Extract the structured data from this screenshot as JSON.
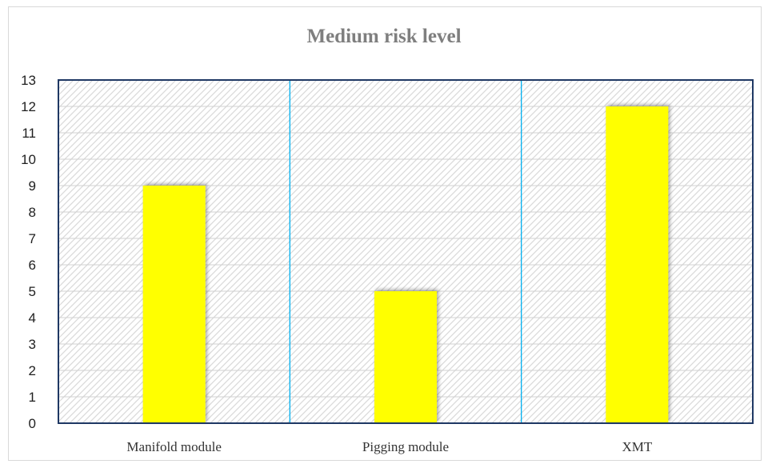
{
  "chart_data": {
    "type": "bar",
    "title": "Medium risk level",
    "categories": [
      "Manifold module",
      "Pigging module",
      "XMT"
    ],
    "values": [
      9,
      5,
      12
    ],
    "ylim": [
      0,
      13
    ],
    "yticks": [
      0,
      1,
      2,
      3,
      4,
      5,
      6,
      7,
      8,
      9,
      10,
      11,
      12,
      13
    ],
    "grid": true,
    "legend": "none",
    "colors": {
      "bar": "#ffff00",
      "plot_border": "#1f3864",
      "category_divider": "#00b0f0",
      "gridline": "#d0d0d0",
      "hatch": "#d9d9d9"
    }
  }
}
